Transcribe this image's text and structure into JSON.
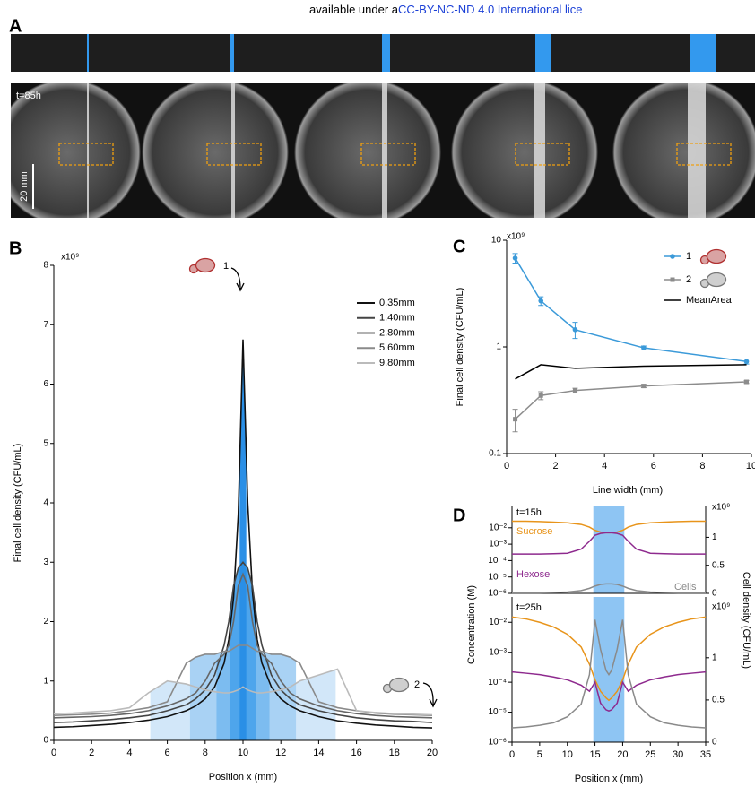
{
  "header": {
    "text": "available under a",
    "link": "CC-BY-NC-ND 4.0 International lice"
  },
  "panel_labels": [
    "A",
    "B",
    "C",
    "D"
  ],
  "panel_a": {
    "time": "t=85h",
    "scale": "20 mm"
  },
  "chart_data": [
    {
      "type": "line",
      "y_label": "Final cell density (CFU/mL)",
      "x_label": "Position x (mm)",
      "y_unit": "x10⁹",
      "xlim": [
        0,
        20
      ],
      "ylim": [
        0,
        8
      ],
      "xticks": [
        0,
        2,
        4,
        6,
        8,
        10,
        12,
        14,
        16,
        18,
        20
      ],
      "yticks": [
        0,
        1,
        2,
        3,
        4,
        5,
        6,
        7,
        8
      ],
      "x": [
        0,
        1,
        2,
        3,
        4,
        5,
        6,
        7,
        7.5,
        8,
        8.5,
        9,
        9.25,
        9.5,
        9.75,
        10,
        10.25,
        10.5,
        10.75,
        11,
        11.5,
        12,
        12.5,
        13,
        14,
        15,
        16,
        17,
        18,
        19,
        20
      ],
      "series": [
        {
          "name": "0.35mm",
          "color": "#111111",
          "values": [
            0.22,
            0.23,
            0.25,
            0.27,
            0.3,
            0.34,
            0.4,
            0.5,
            0.58,
            0.7,
            0.9,
            1.3,
            1.7,
            2.4,
            3.8,
            6.75,
            4.0,
            2.5,
            1.7,
            1.3,
            0.9,
            0.7,
            0.58,
            0.5,
            0.4,
            0.33,
            0.29,
            0.26,
            0.24,
            0.22,
            0.21
          ]
        },
        {
          "name": "1.40mm",
          "color": "#444444",
          "values": [
            0.3,
            0.31,
            0.33,
            0.35,
            0.38,
            0.42,
            0.5,
            0.6,
            0.7,
            0.85,
            1.1,
            1.6,
            2.0,
            2.6,
            2.9,
            3.0,
            2.9,
            2.6,
            2.0,
            1.6,
            1.1,
            0.85,
            0.7,
            0.6,
            0.5,
            0.43,
            0.38,
            0.35,
            0.33,
            0.32,
            0.3
          ]
        },
        {
          "name": "2.80mm",
          "color": "#666666",
          "values": [
            0.38,
            0.39,
            0.4,
            0.42,
            0.45,
            0.5,
            0.58,
            0.7,
            0.8,
            1.0,
            1.3,
            1.45,
            1.6,
            2.0,
            2.6,
            2.8,
            2.6,
            2.0,
            1.6,
            1.45,
            1.3,
            1.0,
            0.8,
            0.7,
            0.58,
            0.5,
            0.45,
            0.42,
            0.4,
            0.39,
            0.38
          ]
        },
        {
          "name": "5.60mm",
          "color": "#8a8a8a",
          "values": [
            0.42,
            0.43,
            0.44,
            0.46,
            0.5,
            0.55,
            0.65,
            1.3,
            1.4,
            1.45,
            1.45,
            1.5,
            1.5,
            1.55,
            1.6,
            1.6,
            1.6,
            1.55,
            1.5,
            1.5,
            1.45,
            1.45,
            1.4,
            1.3,
            0.65,
            0.55,
            0.5,
            0.46,
            0.44,
            0.43,
            0.42
          ]
        },
        {
          "name": "9.80mm",
          "color": "#bbbbbb",
          "values": [
            0.45,
            0.46,
            0.48,
            0.5,
            0.55,
            0.8,
            1.0,
            0.95,
            0.9,
            0.85,
            0.82,
            0.8,
            0.8,
            0.82,
            0.85,
            0.9,
            0.85,
            0.82,
            0.8,
            0.8,
            0.82,
            0.85,
            0.9,
            1.0,
            1.1,
            1.2,
            0.5,
            0.47,
            0.45,
            0.44,
            0.43
          ]
        }
      ],
      "bands": [
        [
          9.825,
          10.175
        ],
        [
          9.3,
          10.7
        ],
        [
          8.6,
          11.4
        ],
        [
          7.2,
          12.8
        ],
        [
          5.1,
          14.9
        ]
      ],
      "band_colors": [
        "#2a8fe6",
        "#4ea5ec",
        "#7cbcf0",
        "#a9d2f4",
        "#d2e7f9"
      ],
      "annotations": [
        "1",
        "2"
      ],
      "legend": "upper right"
    },
    {
      "type": "line",
      "log_y": true,
      "y_label": "Final cell density (CFU/mL)",
      "x_label": "Line width (mm)",
      "y_unit": "x10⁹",
      "xlim": [
        0,
        10
      ],
      "ylim": [
        0.1,
        10
      ],
      "xticks": [
        0,
        2,
        4,
        6,
        8,
        10
      ],
      "yticks": [
        0.1,
        1,
        10
      ],
      "x": [
        0.35,
        1.4,
        2.8,
        5.6,
        9.8
      ],
      "series": [
        {
          "name": "1",
          "color": "#3b9ad9",
          "marker": "circle",
          "values": [
            6.8,
            2.7,
            1.45,
            0.98,
            0.73
          ],
          "errors": [
            0.7,
            0.25,
            0.25,
            0.04,
            0.04
          ]
        },
        {
          "name": "2",
          "color": "#8c8c8c",
          "marker": "square",
          "values": [
            0.21,
            0.35,
            0.39,
            0.43,
            0.47
          ],
          "errors": [
            0.05,
            0.03,
            0.02,
            0.015,
            0.015
          ]
        },
        {
          "name": "MeanArea",
          "color": "#000000",
          "values": [
            0.5,
            0.68,
            0.63,
            0.66,
            0.68
          ]
        }
      ],
      "legend": "upper right"
    },
    {
      "type": "line",
      "log_y": true,
      "title": "t=15h",
      "y_label": "Concentration (M)",
      "y2_label": "Cell density (CFU/mL)",
      "y2_unit": "x10⁹",
      "xlim": [
        0,
        35
      ],
      "ylim": [
        1e-06,
        0.2
      ],
      "y2lim": [
        0,
        1.55
      ],
      "yticks": [
        {
          "value": 0.01,
          "label": "10⁻²"
        },
        {
          "value": 0.001,
          "label": "10⁻³"
        },
        {
          "value": 0.0001,
          "label": "10⁻⁴"
        },
        {
          "value": 1e-05,
          "label": "10⁻⁵"
        },
        {
          "value": 1e-06,
          "label": "10⁻⁶"
        }
      ],
      "y2ticks": [
        0,
        0.5,
        1
      ],
      "x": [
        0,
        2.5,
        5,
        7.5,
        10,
        12.5,
        14,
        15,
        16,
        17,
        17.5,
        18,
        19,
        20,
        21,
        22.5,
        25,
        27.5,
        30,
        32.5,
        35
      ],
      "series": [
        {
          "name": "Sucrose",
          "color": "#e8941a",
          "values": [
            0.025,
            0.025,
            0.024,
            0.022,
            0.02,
            0.016,
            0.011,
            0.007,
            0.0055,
            0.005,
            0.005,
            0.005,
            0.0055,
            0.007,
            0.011,
            0.016,
            0.02,
            0.022,
            0.024,
            0.025,
            0.025
          ]
        },
        {
          "name": "Hexose",
          "color": "#8e2a8e",
          "values": [
            0.00025,
            0.00025,
            0.00025,
            0.00026,
            0.00028,
            0.0005,
            0.0015,
            0.0035,
            0.0045,
            0.005,
            0.005,
            0.005,
            0.0045,
            0.0035,
            0.0015,
            0.0005,
            0.00028,
            0.00026,
            0.00025,
            0.00025,
            0.00025
          ]
        },
        {
          "name": "Cells",
          "color": "#8a8a8a",
          "axis": "y2",
          "values": [
            0.01,
            0.01,
            0.01,
            0.015,
            0.025,
            0.05,
            0.09,
            0.13,
            0.16,
            0.17,
            0.17,
            0.17,
            0.16,
            0.13,
            0.09,
            0.05,
            0.025,
            0.015,
            0.01,
            0.01,
            0.01
          ]
        }
      ],
      "bands": [
        [
          14.7,
          20.3
        ]
      ],
      "band_colors": [
        "#8ec5f3"
      ]
    },
    {
      "type": "line",
      "log_y": true,
      "title": "t=25h",
      "x_label": "Position x (mm)",
      "y2_unit": "x10⁹",
      "xlim": [
        0,
        35
      ],
      "ylim": [
        1e-06,
        0.07
      ],
      "y2lim": [
        0,
        1.72
      ],
      "xticks": [
        0,
        5,
        10,
        15,
        20,
        25,
        30,
        35
      ],
      "yticks": [
        {
          "value": 0.01,
          "label": "10⁻²"
        },
        {
          "value": 0.001,
          "label": "10⁻³"
        },
        {
          "value": 0.0001,
          "label": "10⁻⁴"
        },
        {
          "value": 1e-05,
          "label": "10⁻⁵"
        },
        {
          "value": 1e-06,
          "label": "10⁻⁶"
        }
      ],
      "y2ticks": [
        0,
        0.5,
        1
      ],
      "x": [
        0,
        2.5,
        5,
        7.5,
        10,
        12.5,
        14,
        15,
        16,
        17,
        17.5,
        18,
        19,
        20,
        21,
        22.5,
        25,
        27.5,
        30,
        32.5,
        35
      ],
      "series": [
        {
          "color": "#e8941a",
          "values": [
            0.015,
            0.013,
            0.01,
            0.007,
            0.004,
            0.0015,
            0.0004,
            0.00012,
            5e-05,
            3e-05,
            2.5e-05,
            3e-05,
            5e-05,
            0.00012,
            0.0004,
            0.0015,
            0.004,
            0.007,
            0.01,
            0.013,
            0.015
          ]
        },
        {
          "color": "#8e2a8e",
          "values": [
            0.00022,
            0.0002,
            0.00018,
            0.00015,
            0.00012,
            8e-05,
            5e-05,
            0.0001,
            2e-05,
            1.2e-05,
            1.1e-05,
            1.2e-05,
            2e-05,
            0.0001,
            5e-05,
            8e-05,
            0.00012,
            0.00015,
            0.00018,
            0.0002,
            0.00022
          ]
        },
        {
          "color": "#8a8a8a",
          "axis": "y2",
          "values": [
            0.17,
            0.18,
            0.2,
            0.23,
            0.3,
            0.45,
            0.8,
            1.45,
            1.1,
            0.85,
            0.8,
            0.85,
            1.1,
            1.45,
            0.8,
            0.45,
            0.3,
            0.23,
            0.2,
            0.18,
            0.17
          ]
        }
      ],
      "bands": [
        [
          14.7,
          20.3
        ]
      ],
      "band_colors": [
        "#8ec5f3"
      ]
    }
  ]
}
